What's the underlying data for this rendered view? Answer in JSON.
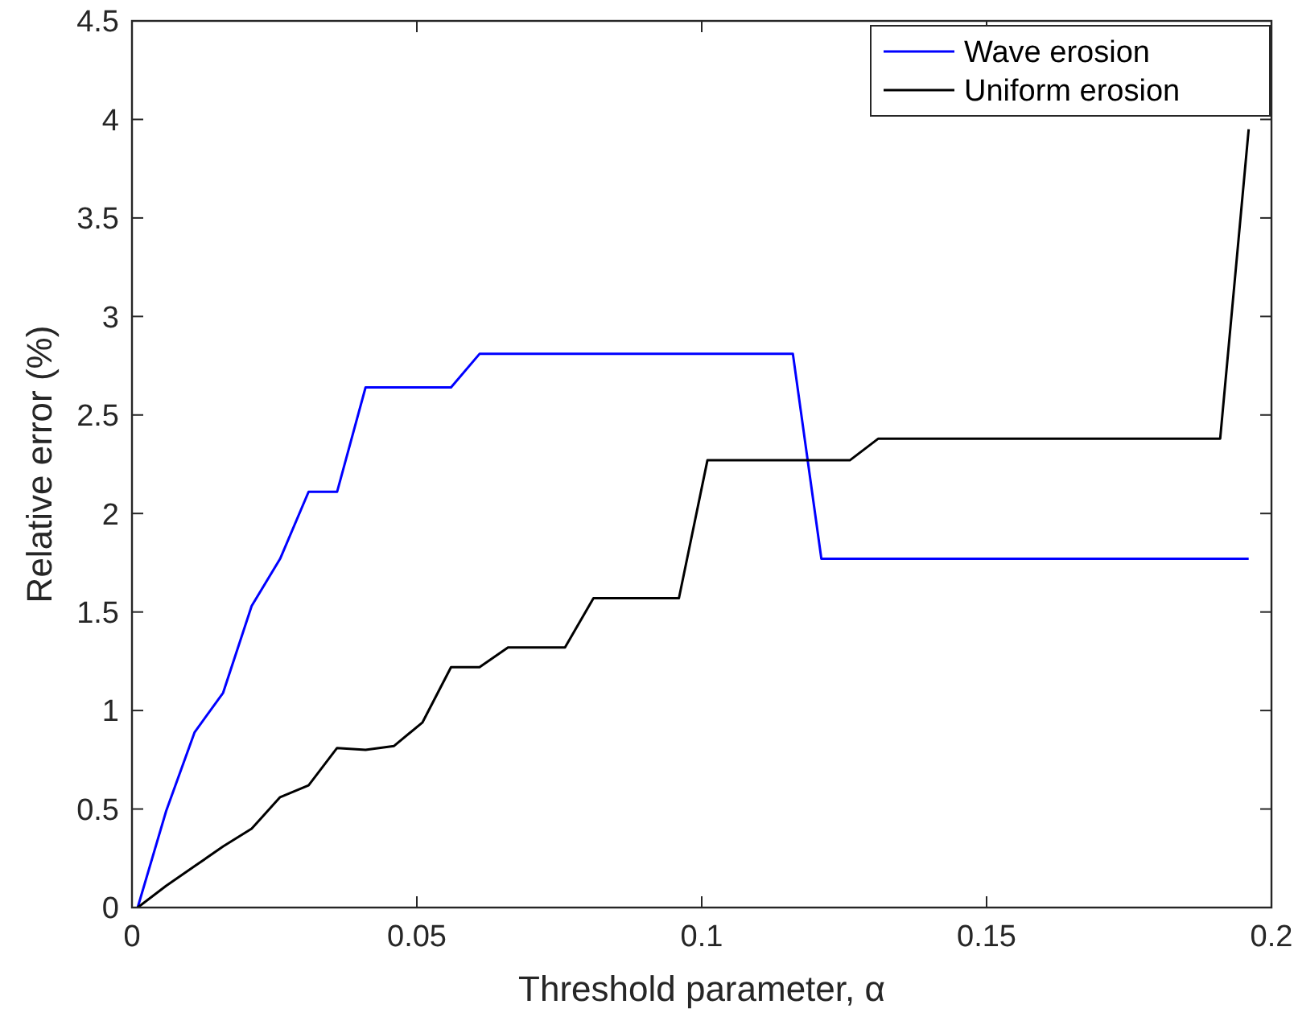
{
  "chart_data": {
    "type": "line",
    "xlabel": "Threshold parameter, α",
    "ylabel": "Relative error (%)",
    "x": [
      0.001,
      0.006,
      0.011,
      0.016,
      0.021,
      0.026,
      0.031,
      0.036,
      0.041,
      0.046,
      0.051,
      0.056,
      0.061,
      0.066,
      0.071,
      0.076,
      0.081,
      0.086,
      0.091,
      0.096,
      0.101,
      0.106,
      0.111,
      0.116,
      0.121,
      0.126,
      0.131,
      0.136,
      0.141,
      0.146,
      0.151,
      0.156,
      0.161,
      0.166,
      0.171,
      0.176,
      0.181,
      0.186,
      0.191,
      0.196
    ],
    "series": [
      {
        "name": "Wave erosion",
        "color": "#0000ff",
        "values": [
          0,
          0.49,
          0.89,
          1.09,
          1.53,
          1.77,
          2.11,
          2.11,
          2.64,
          2.64,
          2.64,
          2.64,
          2.81,
          2.81,
          2.81,
          2.81,
          2.81,
          2.81,
          2.81,
          2.81,
          2.81,
          2.81,
          2.81,
          2.81,
          1.77,
          1.77,
          1.77,
          1.77,
          1.77,
          1.77,
          1.77,
          1.77,
          1.77,
          1.77,
          1.77,
          1.77,
          1.77,
          1.77,
          1.77,
          1.77
        ]
      },
      {
        "name": "Uniform erosion",
        "color": "#000000",
        "values": [
          0,
          0.11,
          0.21,
          0.31,
          0.4,
          0.56,
          0.62,
          0.81,
          0.8,
          0.82,
          0.94,
          1.22,
          1.22,
          1.32,
          1.32,
          1.32,
          1.57,
          1.57,
          1.57,
          1.57,
          2.27,
          2.27,
          2.27,
          2.27,
          2.27,
          2.27,
          2.38,
          2.38,
          2.38,
          2.38,
          2.38,
          2.38,
          2.38,
          2.38,
          2.38,
          2.38,
          2.38,
          2.38,
          2.38,
          3.95
        ]
      }
    ],
    "xlim": [
      0,
      0.2
    ],
    "xticks": [
      0,
      0.05,
      0.1,
      0.15,
      0.2
    ],
    "ylim": [
      0,
      4.5
    ],
    "yticks": [
      0,
      0.5,
      1,
      1.5,
      2,
      2.5,
      3,
      3.5,
      4,
      4.5
    ],
    "legend": "top right",
    "grid": false,
    "marker": "none",
    "line_style": "solid"
  }
}
